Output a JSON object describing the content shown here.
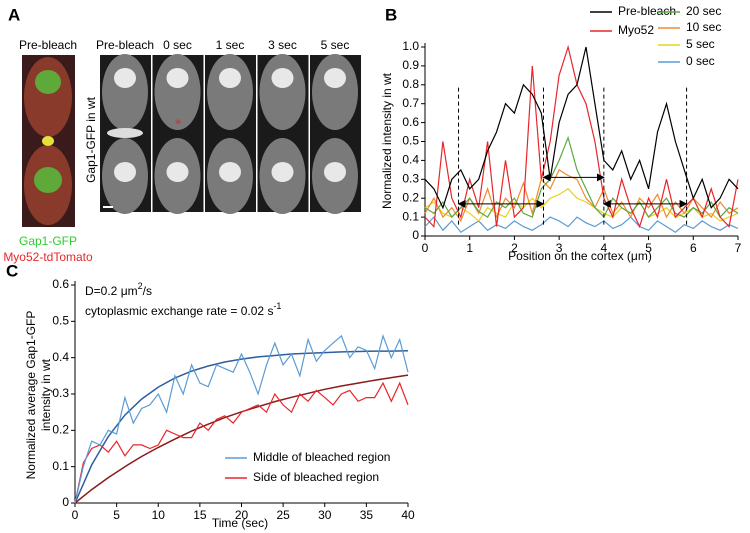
{
  "panel_labels": [
    "A",
    "B",
    "C"
  ],
  "panel_a": {
    "left_title": "Pre-bleach",
    "timepoints": [
      "Pre-bleach",
      "0 sec",
      "1 sec",
      "3 sec",
      "5 sec"
    ],
    "side_label": "Gap1-GFP in wt",
    "channels": [
      "Gap1-GFP",
      "Myo52-tdTomato"
    ],
    "marker": "*"
  },
  "chart_data": [
    {
      "type": "line",
      "xlabel": "Position on the cortex (μm)",
      "ylabel": "Normalized intensity in wt",
      "xlim": [
        0,
        7
      ],
      "ylim": [
        0,
        1
      ],
      "xticks": [
        0,
        1,
        2,
        3,
        4,
        5,
        6,
        7
      ],
      "yticks": [
        0,
        0.1,
        0.2,
        0.3,
        0.4,
        0.5,
        0.6,
        0.7,
        0.8,
        0.9,
        {
          "value": 1,
          "label": "1.0"
        }
      ],
      "grid": false,
      "x": [
        0,
        0.2,
        0.4,
        0.6,
        0.8,
        1,
        1.2,
        1.4,
        1.6,
        1.8,
        2,
        2.2,
        2.4,
        2.6,
        2.8,
        3,
        3.2,
        3.4,
        3.6,
        3.8,
        4,
        4.2,
        4.4,
        4.6,
        4.8,
        5,
        5.2,
        5.4,
        5.6,
        5.8,
        6,
        6.2,
        6.4,
        6.6,
        6.8,
        7
      ],
      "series": [
        {
          "name": "Pre-bleach",
          "color": "#000000",
          "values": [
            0.3,
            0.25,
            0.15,
            0.3,
            0.35,
            0.25,
            0.3,
            0.45,
            0.55,
            0.7,
            0.65,
            0.8,
            0.75,
            0.65,
            0.3,
            0.6,
            0.75,
            0.8,
            1.0,
            0.7,
            0.4,
            0.35,
            0.45,
            0.3,
            0.4,
            0.25,
            0.55,
            0.7,
            0.5,
            0.35,
            0.2,
            0.3,
            0.15,
            0.2,
            0.3,
            0.25
          ]
        },
        {
          "name": "Myo52",
          "color": "#e8262a",
          "values": [
            0.1,
            0.05,
            0.5,
            0.2,
            0.1,
            0.3,
            0.15,
            0.5,
            0.05,
            0.4,
            0.1,
            0.15,
            0.9,
            0.3,
            0.5,
            0.85,
            1.0,
            0.8,
            0.7,
            0.5,
            0.2,
            0.1,
            0.3,
            0.15,
            0.05,
            0.2,
            0.1,
            0.3,
            0.1,
            0.15,
            0.2,
            0.1,
            0.25,
            0.1,
            0.05,
            0.3
          ]
        },
        {
          "name": "20 sec",
          "color": "#5aa845",
          "values": [
            0.15,
            0.12,
            0.18,
            0.1,
            0.15,
            0.2,
            0.13,
            0.1,
            0.18,
            0.15,
            0.2,
            0.12,
            0.1,
            0.25,
            0.3,
            0.4,
            0.52,
            0.35,
            0.25,
            0.15,
            0.1,
            0.2,
            0.15,
            0.12,
            0.18,
            0.1,
            0.15,
            0.2,
            0.12,
            0.1,
            0.15,
            0.12,
            0.18,
            0.1,
            0.15,
            0.12
          ]
        },
        {
          "name": "10 sec",
          "color": "#f08a2c",
          "values": [
            0.12,
            0.2,
            0.1,
            0.15,
            0.08,
            0.2,
            0.12,
            0.25,
            0.1,
            0.2,
            0.15,
            0.28,
            0.12,
            0.3,
            0.25,
            0.35,
            0.32,
            0.3,
            0.2,
            0.15,
            0.25,
            0.12,
            0.18,
            0.1,
            0.2,
            0.15,
            0.22,
            0.1,
            0.18,
            0.12,
            0.2,
            0.15,
            0.1,
            0.18,
            0.12,
            0.15
          ]
        },
        {
          "name": "5 sec",
          "color": "#e8d21a",
          "values": [
            0.15,
            0.18,
            0.12,
            0.1,
            0.15,
            0.12,
            0.08,
            0.15,
            0.12,
            0.1,
            0.18,
            0.15,
            0.2,
            0.15,
            0.2,
            0.22,
            0.25,
            0.2,
            0.18,
            0.15,
            0.12,
            0.1,
            0.15,
            0.12,
            0.18,
            0.1,
            0.12,
            0.15,
            0.1,
            0.12,
            0.15,
            0.1,
            0.12,
            0.08,
            0.1,
            0.12
          ]
        },
        {
          "name": "0 sec",
          "color": "#5b9bd5",
          "values": [
            0.05,
            0.1,
            0.03,
            0.08,
            0.02,
            0.05,
            0.08,
            0.03,
            0.06,
            0.04,
            0.08,
            0.05,
            0.03,
            0.06,
            0.1,
            0.08,
            0.05,
            0.1,
            0.07,
            0.05,
            0.08,
            0.04,
            0.06,
            0.1,
            0.05,
            0.03,
            0.08,
            0.05,
            0.02,
            0.06,
            0.04,
            0.08,
            0.05,
            0.03,
            0.06,
            0.04
          ]
        }
      ],
      "vlines": [
        {
          "x": 0.75,
          "y": [
            0.06,
            0.8
          ]
        },
        {
          "x": 2.65,
          "y": [
            0.06,
            0.8
          ]
        },
        {
          "x": 4.0,
          "y": [
            0.06,
            0.8
          ]
        },
        {
          "x": 5.85,
          "y": [
            0.06,
            0.8
          ]
        }
      ],
      "arrows": [
        {
          "x": [
            0.75,
            2.65
          ],
          "y": 0.17
        },
        {
          "x": [
            2.65,
            4.0
          ],
          "y": 0.31
        },
        {
          "x": [
            4.0,
            5.85
          ],
          "y": 0.17
        }
      ]
    },
    {
      "type": "line",
      "xlabel": "Time (sec)",
      "ylabel": [
        "Normalized average Gap1-GFP",
        "intensity in wt"
      ],
      "annotations": [
        {
          "parts": [
            "D=0.2 μm",
            "2",
            "/s"
          ]
        },
        {
          "parts": [
            "cytoplasmic exchange rate = 0.02 s",
            "-1"
          ]
        }
      ],
      "xlim": [
        0,
        40
      ],
      "ylim": [
        0,
        0.6
      ],
      "xticks": [
        0,
        5,
        10,
        15,
        20,
        25,
        30,
        35,
        40
      ],
      "yticks": [
        0,
        0.1,
        0.2,
        0.3,
        0.4,
        0.5,
        0.6
      ],
      "grid": false,
      "x": [
        0,
        1,
        2,
        3,
        4,
        5,
        6,
        7,
        8,
        9,
        10,
        11,
        12,
        13,
        14,
        15,
        16,
        17,
        18,
        19,
        20,
        21,
        22,
        23,
        24,
        25,
        26,
        27,
        28,
        29,
        30,
        31,
        32,
        33,
        34,
        35,
        36,
        37,
        38,
        39,
        40
      ],
      "series": [
        {
          "name": "Middle of bleached region",
          "color": "#5b9bd5",
          "values": [
            0,
            0.1,
            0.17,
            0.16,
            0.2,
            0.19,
            0.29,
            0.22,
            0.26,
            0.27,
            0.3,
            0.25,
            0.35,
            0.3,
            0.38,
            0.33,
            0.32,
            0.38,
            0.37,
            0.36,
            0.41,
            0.36,
            0.3,
            0.38,
            0.44,
            0.38,
            0.41,
            0.35,
            0.45,
            0.39,
            0.42,
            0.44,
            0.46,
            0.4,
            0.43,
            0.42,
            0.37,
            0.46,
            0.4,
            0.45,
            0.36
          ]
        },
        {
          "name": "Side of bleached region",
          "color": "#e8262a",
          "values": [
            0,
            0.11,
            0.15,
            0.16,
            0.14,
            0.17,
            0.13,
            0.16,
            0.16,
            0.15,
            0.16,
            0.2,
            0.19,
            0.18,
            0.18,
            0.22,
            0.2,
            0.23,
            0.24,
            0.22,
            0.25,
            0.26,
            0.27,
            0.25,
            0.3,
            0.27,
            0.25,
            0.3,
            0.28,
            0.31,
            0.29,
            0.27,
            0.3,
            0.31,
            0.28,
            0.29,
            0.29,
            0.33,
            0.28,
            0.33,
            0.27
          ]
        }
      ],
      "fit_x": [
        0,
        2,
        4,
        6,
        8,
        10,
        12,
        14,
        16,
        18,
        20,
        22,
        24,
        26,
        28,
        30,
        32,
        34,
        36,
        38,
        40
      ],
      "fits": [
        {
          "color": "#2e5f9e",
          "values": [
            0,
            0.105,
            0.183,
            0.242,
            0.286,
            0.319,
            0.344,
            0.363,
            0.377,
            0.388,
            0.396,
            0.402,
            0.406,
            0.41,
            0.412,
            0.414,
            0.416,
            0.417,
            0.418,
            0.418,
            0.419
          ]
        },
        {
          "color": "#8b1a1a",
          "values": [
            0,
            0.037,
            0.07,
            0.1,
            0.128,
            0.153,
            0.176,
            0.198,
            0.217,
            0.235,
            0.251,
            0.265,
            0.279,
            0.291,
            0.302,
            0.313,
            0.322,
            0.33,
            0.338,
            0.345,
            0.352
          ]
        }
      ]
    }
  ]
}
